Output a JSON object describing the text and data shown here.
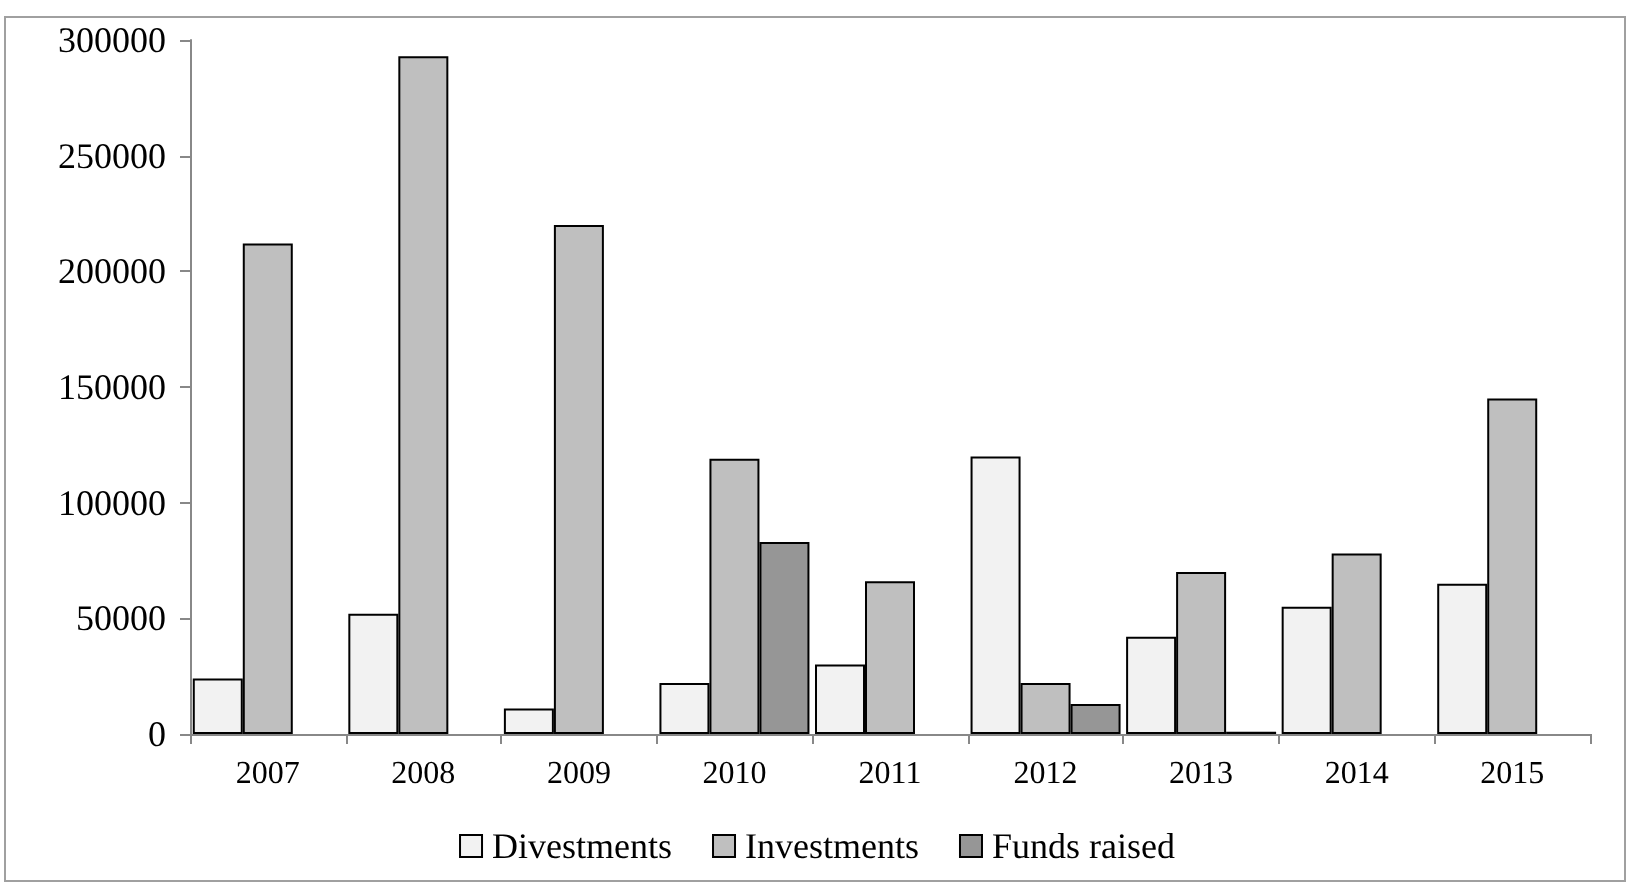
{
  "chart_data": {
    "type": "bar",
    "categories": [
      "2007",
      "2008",
      "2009",
      "2010",
      "2011",
      "2012",
      "2013",
      "2014",
      "2015"
    ],
    "series": [
      {
        "name": "Divestments",
        "color": "#f2f2f2",
        "values": [
          24000,
          52000,
          11000,
          22000,
          30000,
          120000,
          42000,
          55000,
          65000
        ]
      },
      {
        "name": "Investments",
        "color": "#bfbfbf",
        "values": [
          212000,
          293000,
          220000,
          119000,
          66000,
          22000,
          70000,
          78000,
          145000
        ]
      },
      {
        "name": "Funds raised",
        "color": "#969696",
        "values": [
          null,
          null,
          null,
          83000,
          null,
          13000,
          1000,
          null,
          null
        ]
      }
    ],
    "ylim": [
      0,
      300000
    ],
    "yticks": [
      0,
      50000,
      100000,
      150000,
      200000,
      250000,
      300000
    ],
    "grid": false,
    "legend": "bottom"
  }
}
